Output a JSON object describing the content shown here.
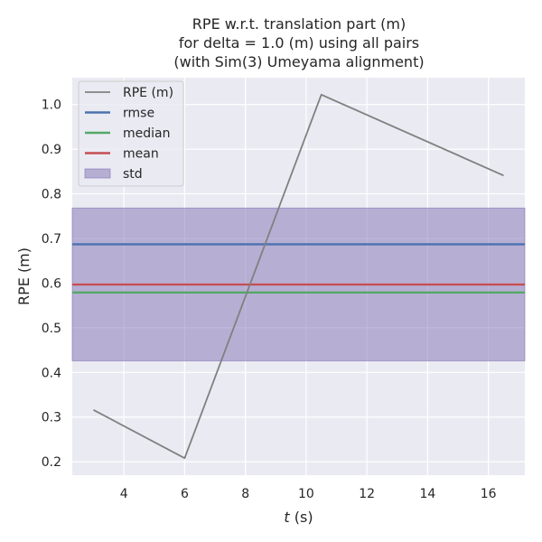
{
  "chart_data": {
    "type": "line",
    "title_lines": [
      "RPE w.r.t. translation part (m)",
      "for delta = 1.0 (m) using all pairs",
      "(with Sim(3) Umeyama alignment)"
    ],
    "xlabel_var": "t",
    "xlabel_unit": " (s)",
    "ylabel": "RPE (m)",
    "xlim": [
      2.3,
      17.2
    ],
    "ylim": [
      0.17,
      1.06
    ],
    "xticks": [
      4,
      6,
      8,
      10,
      12,
      14,
      16
    ],
    "yticks": [
      0.2,
      0.3,
      0.4,
      0.5,
      0.6,
      0.7,
      0.8,
      0.9,
      1.0
    ],
    "grid": true,
    "legend_position": "top-left",
    "series": [
      {
        "name": "RPE (m)",
        "x": [
          3.0,
          6.0,
          10.5,
          16.5
        ],
        "y": [
          0.316,
          0.208,
          1.022,
          0.841
        ],
        "color": "#808080"
      }
    ],
    "stats": {
      "rmse": {
        "name": "rmse",
        "value": 0.687,
        "color": "#4c72b0"
      },
      "median": {
        "name": "median",
        "value": 0.579,
        "color": "#55a868"
      },
      "mean": {
        "name": "mean",
        "value": 0.597,
        "color": "#c44e52"
      },
      "std": {
        "name": "std",
        "low": 0.426,
        "high": 0.768,
        "color": "#8172b3"
      }
    }
  }
}
